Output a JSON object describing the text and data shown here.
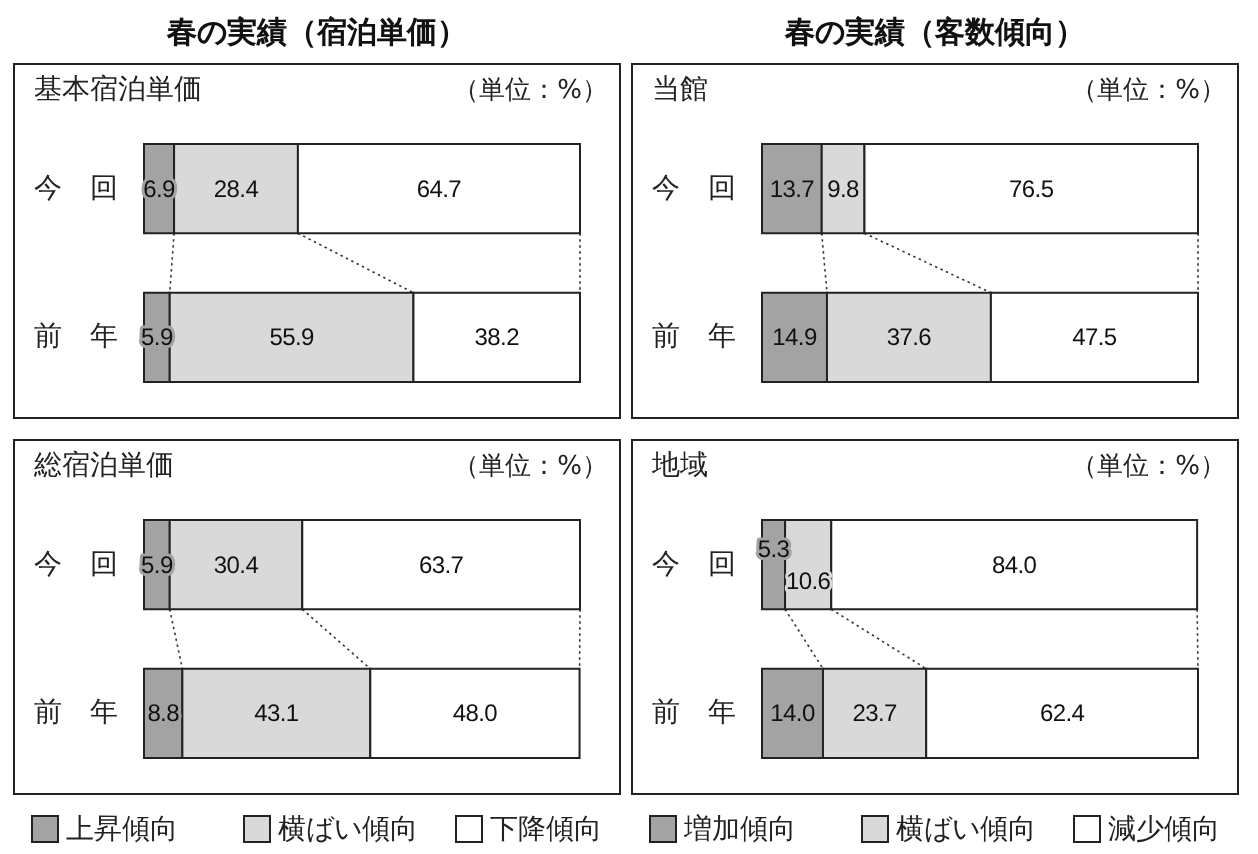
{
  "chart_data": [
    {
      "type": "bar",
      "orientation": "horizontal",
      "stacked": true,
      "title": "春の実績（宿泊単価）",
      "subtitle": "基本宿泊単価",
      "annotations": [
        "（単位：%）"
      ],
      "categories": [
        "今　回",
        "前　年"
      ],
      "series": [
        {
          "color": "#a3a3a3",
          "values": [
            6.9,
            5.9
          ],
          "value_labels": [
            "6.9",
            "5.9"
          ]
        },
        {
          "color": "#d9d9d9",
          "values": [
            28.4,
            55.9
          ],
          "value_labels": [
            "28.4",
            "55.9"
          ]
        },
        {
          "color": "#ffffff",
          "values": [
            64.7,
            38.2
          ],
          "value_labels": [
            "64.7",
            "38.2"
          ]
        }
      ]
    },
    {
      "type": "bar",
      "orientation": "horizontal",
      "stacked": true,
      "title": "春の実績（客数傾向）",
      "subtitle": "当館",
      "annotations": [
        "（単位：%）"
      ],
      "categories": [
        "今　回",
        "前　年"
      ],
      "series": [
        {
          "color": "#a3a3a3",
          "values": [
            13.7,
            14.9
          ],
          "value_labels": [
            "13.7",
            "14.9"
          ]
        },
        {
          "color": "#d9d9d9",
          "values": [
            9.8,
            37.6
          ],
          "value_labels": [
            "9.8",
            "37.6"
          ]
        },
        {
          "color": "#ffffff",
          "values": [
            76.5,
            47.5
          ],
          "value_labels": [
            "76.5",
            "47.5"
          ]
        }
      ]
    },
    {
      "type": "bar",
      "orientation": "horizontal",
      "stacked": true,
      "subtitle": "総宿泊単価",
      "annotations": [
        "（単位：%）"
      ],
      "categories": [
        "今　回",
        "前　年"
      ],
      "legend": "bottom",
      "series": [
        {
          "name": "上昇傾向",
          "color": "#a3a3a3",
          "values": [
            5.9,
            8.8
          ],
          "value_labels": [
            "5.9",
            "8.8"
          ]
        },
        {
          "name": "横ばい傾向",
          "color": "#d9d9d9",
          "values": [
            30.4,
            43.1
          ],
          "value_labels": [
            "30.4",
            "43.1"
          ]
        },
        {
          "name": "下降傾向",
          "color": "#ffffff",
          "values": [
            63.7,
            48.0
          ],
          "value_labels": [
            "63.7",
            "48.0"
          ]
        }
      ]
    },
    {
      "type": "bar",
      "orientation": "horizontal",
      "stacked": true,
      "subtitle": "地域",
      "annotations": [
        "（単位：%）"
      ],
      "categories": [
        "今　回",
        "前　年"
      ],
      "legend": "bottom",
      "series": [
        {
          "name": "増加傾向",
          "color": "#a3a3a3",
          "values": [
            5.3,
            14.0
          ],
          "value_labels": [
            "5.3",
            "14.0"
          ]
        },
        {
          "name": "横ばい傾向",
          "color": "#d9d9d9",
          "values": [
            10.6,
            23.7
          ],
          "value_labels": [
            "10.6",
            "23.7"
          ]
        },
        {
          "name": "減少傾向",
          "color": "#ffffff",
          "values": [
            84.0,
            62.4
          ],
          "value_labels": [
            "84.0",
            "62.4"
          ]
        }
      ]
    }
  ]
}
